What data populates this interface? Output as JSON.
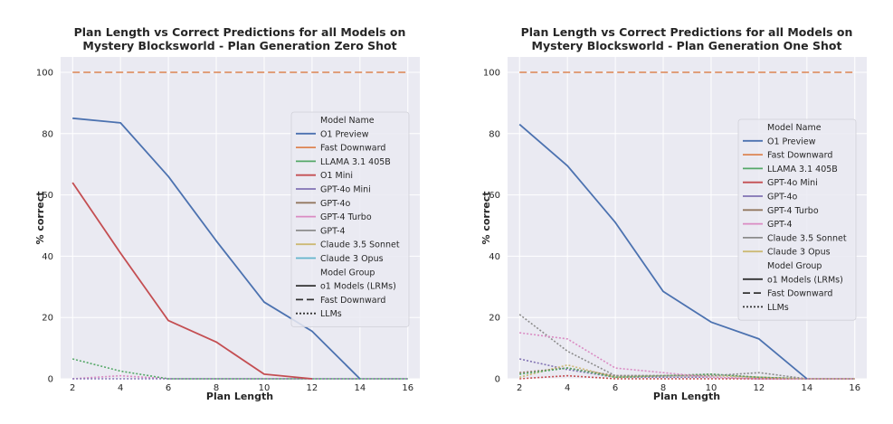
{
  "colors": {
    "plot_bg": "#EAEAF2",
    "grid": "#FFFFFF",
    "text": "#262626"
  },
  "chart_data": [
    {
      "type": "line",
      "title_line1": "Plan Length vs Correct Predictions for all Models on",
      "title_line2": "Mystery Blocksworld - Plan Generation Zero Shot",
      "xlabel": "Plan Length",
      "ylabel": "% correct",
      "xlim": [
        1.5,
        16.5
      ],
      "ylim": [
        0,
        105
      ],
      "xticks": [
        2,
        4,
        6,
        8,
        10,
        12,
        14,
        16
      ],
      "yticks": [
        0,
        20,
        40,
        60,
        80,
        100
      ],
      "legend_position": "right",
      "legend": {
        "model_header": "Model Name",
        "models": [
          {
            "name": "O1 Preview",
            "color": "#4C72B0"
          },
          {
            "name": "Fast Downward",
            "color": "#DD8452"
          },
          {
            "name": "LLAMA 3.1 405B",
            "color": "#55A868"
          },
          {
            "name": "O1 Mini",
            "color": "#C44E52"
          },
          {
            "name": "GPT-4o Mini",
            "color": "#8172B3"
          },
          {
            "name": "GPT-4o",
            "color": "#937860"
          },
          {
            "name": "GPT-4 Turbo",
            "color": "#DA8BC3"
          },
          {
            "name": "GPT-4",
            "color": "#8C8C8C"
          },
          {
            "name": "Claude 3.5 Sonnet",
            "color": "#CCB974"
          },
          {
            "name": "Claude 3 Opus",
            "color": "#64B5CD"
          }
        ],
        "group_header": "Model Group",
        "groups": [
          {
            "name": "o1 Models (LRMs)",
            "dash": "solid"
          },
          {
            "name": "Fast Downward",
            "dash": "dashed"
          },
          {
            "name": "LLMs",
            "dash": "dotted"
          }
        ]
      },
      "series": [
        {
          "name": "Fast Downward",
          "color": "#DD8452",
          "dash": "dashed",
          "x": [
            2,
            16
          ],
          "y": [
            100,
            100
          ]
        },
        {
          "name": "GPT-4 Turbo",
          "color": "#DA8BC3",
          "dash": "dotted",
          "x": [
            2,
            4,
            6,
            8,
            10,
            12,
            14,
            16
          ],
          "y": [
            0,
            1,
            0,
            0,
            0,
            0,
            0,
            0
          ]
        },
        {
          "name": "GPT-4o Mini",
          "color": "#8172B3",
          "dash": "dotted",
          "x": [
            2,
            4,
            6,
            8,
            10,
            12,
            14,
            16
          ],
          "y": [
            0,
            0,
            0,
            0,
            0,
            0,
            0,
            0
          ]
        },
        {
          "name": "LLAMA 3.1 405B",
          "color": "#55A868",
          "dash": "dotted",
          "x": [
            2,
            4,
            6,
            8,
            10,
            12,
            14,
            16
          ],
          "y": [
            6.5,
            2.5,
            0,
            0,
            0,
            0,
            0,
            0
          ]
        },
        {
          "name": "O1 Mini",
          "color": "#C44E52",
          "dash": "solid",
          "x": [
            2,
            4,
            6,
            8,
            10,
            12
          ],
          "y": [
            64,
            41,
            19,
            12,
            1.5,
            0
          ]
        },
        {
          "name": "O1 Preview",
          "color": "#4C72B0",
          "dash": "solid",
          "x": [
            2,
            4,
            6,
            8,
            10,
            12,
            14
          ],
          "y": [
            85,
            83.5,
            66,
            45,
            25,
            15.5,
            0
          ]
        }
      ]
    },
    {
      "type": "line",
      "title_line1": "Plan Length vs Correct Predictions for all Models on",
      "title_line2": "Mystery Blocksworld - Plan Generation One Shot",
      "xlabel": "Plan Length",
      "ylabel": "% correct",
      "xlim": [
        1.5,
        16.5
      ],
      "ylim": [
        0,
        105
      ],
      "xticks": [
        2,
        4,
        6,
        8,
        10,
        12,
        14,
        16
      ],
      "yticks": [
        0,
        20,
        40,
        60,
        80,
        100
      ],
      "legend_position": "right",
      "legend": {
        "model_header": "Model Name",
        "models": [
          {
            "name": "O1 Preview",
            "color": "#4C72B0"
          },
          {
            "name": "Fast Downward",
            "color": "#DD8452"
          },
          {
            "name": "LLAMA 3.1 405B",
            "color": "#55A868"
          },
          {
            "name": "GPT-4o Mini",
            "color": "#C44E52"
          },
          {
            "name": "GPT-4o",
            "color": "#8172B3"
          },
          {
            "name": "GPT-4 Turbo",
            "color": "#937860"
          },
          {
            "name": "GPT-4",
            "color": "#DA8BC3"
          },
          {
            "name": "Claude 3.5 Sonnet",
            "color": "#8C8C8C"
          },
          {
            "name": "Claude 3 Opus",
            "color": "#CCB974"
          }
        ],
        "group_header": "Model Group",
        "groups": [
          {
            "name": "o1 Models (LRMs)",
            "dash": "solid"
          },
          {
            "name": "Fast Downward",
            "dash": "dashed"
          },
          {
            "name": "LLMs",
            "dash": "dotted"
          }
        ]
      },
      "series": [
        {
          "name": "Fast Downward",
          "color": "#DD8452",
          "dash": "dashed",
          "x": [
            2,
            16
          ],
          "y": [
            100,
            100
          ]
        },
        {
          "name": "GPT-4o",
          "color": "#8172B3",
          "dash": "dotted",
          "x": [
            2,
            4,
            6,
            8,
            10,
            12,
            14,
            16
          ],
          "y": [
            6.5,
            3,
            0.5,
            0.5,
            0.5,
            0,
            0,
            0
          ]
        },
        {
          "name": "GPT-4o Mini",
          "color": "#C44E52",
          "dash": "dotted",
          "x": [
            2,
            4,
            6,
            8,
            10,
            12,
            14,
            16
          ],
          "y": [
            0,
            1,
            0,
            0,
            0,
            0,
            0,
            0
          ]
        },
        {
          "name": "Claude 3 Opus",
          "color": "#CCB974",
          "dash": "dotted",
          "x": [
            2,
            4,
            6,
            8,
            10,
            12,
            14,
            16
          ],
          "y": [
            0.5,
            4.5,
            0.5,
            1,
            1,
            0.5,
            0,
            0
          ]
        },
        {
          "name": "GPT-4 Turbo",
          "color": "#937860",
          "dash": "dotted",
          "x": [
            2,
            4,
            6,
            8,
            10,
            12,
            14,
            16
          ],
          "y": [
            2,
            3.5,
            1,
            1,
            1.5,
            0.5,
            0,
            0
          ]
        },
        {
          "name": "LLAMA 3.1 405B",
          "color": "#55A868",
          "dash": "dotted",
          "x": [
            2,
            4,
            6,
            8,
            10,
            12,
            14,
            16
          ],
          "y": [
            1.5,
            3.5,
            0.5,
            1,
            1.5,
            0.5,
            0,
            0
          ]
        },
        {
          "name": "Claude 3.5 Sonnet",
          "color": "#8C8C8C",
          "dash": "dotted",
          "x": [
            2,
            4,
            6,
            8,
            10,
            12,
            14,
            16
          ],
          "y": [
            21,
            9,
            1,
            1,
            1,
            2,
            0,
            0
          ]
        },
        {
          "name": "GPT-4",
          "color": "#DA8BC3",
          "dash": "dotted",
          "x": [
            2,
            4,
            6,
            8,
            10,
            12,
            14,
            16
          ],
          "y": [
            15,
            13,
            3.5,
            2,
            0.5,
            0,
            0,
            0
          ]
        },
        {
          "name": "O1 Preview",
          "color": "#4C72B0",
          "dash": "solid",
          "x": [
            2,
            4,
            6,
            8,
            10,
            12,
            14
          ],
          "y": [
            83,
            69.5,
            51,
            28.5,
            18.5,
            13,
            0
          ]
        }
      ]
    }
  ]
}
